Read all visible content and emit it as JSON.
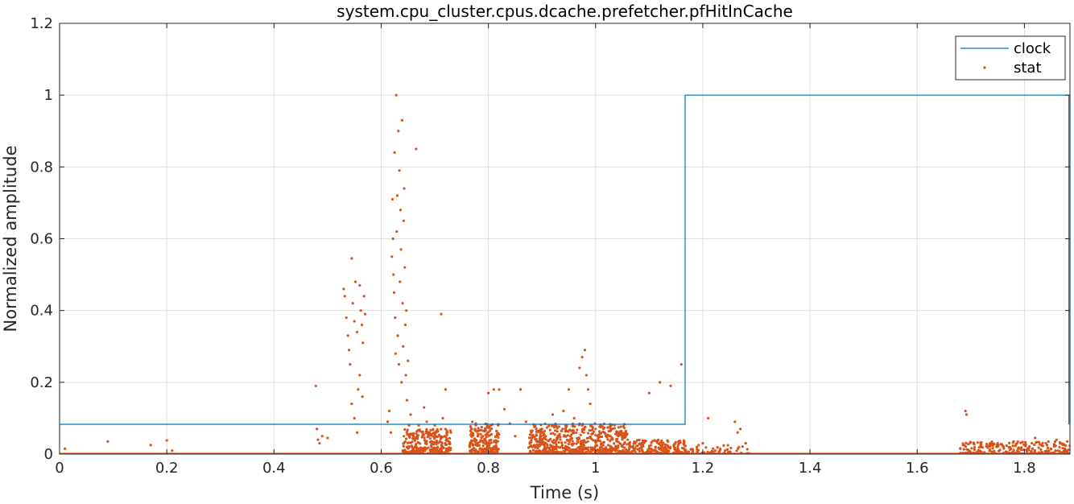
{
  "chart_data": {
    "type": "line+scatter",
    "title": "system.cpu_cluster.cpus.dcache.prefetcher.pfHitInCache",
    "xlabel": "Time (s)",
    "ylabel": "Normalized amplitude",
    "xlim": [
      0,
      1.885
    ],
    "ylim": [
      0,
      1.2
    ],
    "xticks": [
      0,
      0.2,
      0.4,
      0.6,
      0.8,
      1,
      1.2,
      1.4,
      1.6,
      1.8
    ],
    "xtick_labels": [
      "0",
      "0.2",
      "0.4",
      "0.6",
      "0.8",
      "1",
      "1.2",
      "1.4",
      "1.6",
      "1.8"
    ],
    "yticks": [
      0,
      0.2,
      0.4,
      0.6,
      0.8,
      1,
      1.2
    ],
    "ytick_labels": [
      "0",
      "0.2",
      "0.4",
      "0.6",
      "0.8",
      "1",
      "1.2"
    ],
    "grid": true,
    "legend_position": "top-right",
    "series": [
      {
        "name": "clock",
        "kind": "step-line",
        "color": "#0072BD",
        "x": [
          0,
          1.167,
          1.167,
          1.883,
          1.883
        ],
        "y": [
          0.083,
          0.083,
          1.0,
          1.0,
          0.083
        ]
      },
      {
        "name": "stat",
        "kind": "scatter",
        "color": "#D95319",
        "baseline": {
          "x_start": 0,
          "x_end": 1.885,
          "y": 0
        },
        "points": [
          [
            0.01,
            0.015
          ],
          [
            0.09,
            0.035
          ],
          [
            0.17,
            0.025
          ],
          [
            0.2,
            0.038
          ],
          [
            0.21,
            0.01
          ],
          [
            0.478,
            0.19
          ],
          [
            0.48,
            0.07
          ],
          [
            0.482,
            0.04
          ],
          [
            0.485,
            0.03
          ],
          [
            0.49,
            0.05
          ],
          [
            0.5,
            0.045
          ],
          [
            0.53,
            0.46
          ],
          [
            0.532,
            0.44
          ],
          [
            0.535,
            0.38
          ],
          [
            0.538,
            0.33
          ],
          [
            0.54,
            0.29
          ],
          [
            0.542,
            0.25
          ],
          [
            0.545,
            0.545
          ],
          [
            0.547,
            0.42
          ],
          [
            0.55,
            0.37
          ],
          [
            0.552,
            0.48
          ],
          [
            0.555,
            0.34
          ],
          [
            0.557,
            0.18
          ],
          [
            0.56,
            0.47
          ],
          [
            0.562,
            0.4
          ],
          [
            0.564,
            0.36
          ],
          [
            0.566,
            0.31
          ],
          [
            0.568,
            0.44
          ],
          [
            0.57,
            0.39
          ],
          [
            0.545,
            0.14
          ],
          [
            0.55,
            0.1
          ],
          [
            0.555,
            0.06
          ],
          [
            0.56,
            0.22
          ],
          [
            0.565,
            0.16
          ],
          [
            0.612,
            0.09
          ],
          [
            0.615,
            0.12
          ],
          [
            0.618,
            0.06
          ],
          [
            0.62,
            0.55
          ],
          [
            0.621,
            0.71
          ],
          [
            0.622,
            0.6
          ],
          [
            0.623,
            0.5
          ],
          [
            0.624,
            0.45
          ],
          [
            0.625,
            0.84
          ],
          [
            0.626,
            0.38
          ],
          [
            0.627,
            0.28
          ],
          [
            0.628,
            1.0
          ],
          [
            0.629,
            0.62
          ],
          [
            0.63,
            0.72
          ],
          [
            0.631,
            0.33
          ],
          [
            0.632,
            0.9
          ],
          [
            0.633,
            0.25
          ],
          [
            0.634,
            0.79
          ],
          [
            0.635,
            0.48
          ],
          [
            0.636,
            0.68
          ],
          [
            0.637,
            0.57
          ],
          [
            0.638,
            0.2
          ],
          [
            0.639,
            0.93
          ],
          [
            0.64,
            0.42
          ],
          [
            0.641,
            0.3
          ],
          [
            0.642,
            0.65
          ],
          [
            0.643,
            0.74
          ],
          [
            0.644,
            0.52
          ],
          [
            0.645,
            0.36
          ],
          [
            0.646,
            0.22
          ],
          [
            0.647,
            0.4
          ],
          [
            0.648,
            0.15
          ],
          [
            0.65,
            0.26
          ],
          [
            0.652,
            0.08
          ],
          [
            0.655,
            0.11
          ],
          [
            0.66,
            0.05
          ],
          [
            0.665,
            0.85
          ],
          [
            0.67,
            0.08
          ],
          [
            0.68,
            0.13
          ],
          [
            0.685,
            0.09
          ],
          [
            0.69,
            0.06
          ],
          [
            0.7,
            0.08
          ],
          [
            0.71,
            0.05
          ],
          [
            0.712,
            0.39
          ],
          [
            0.715,
            0.1
          ],
          [
            0.72,
            0.18
          ],
          [
            0.73,
            0.06
          ],
          [
            0.77,
            0.09
          ],
          [
            0.775,
            0.07
          ],
          [
            0.78,
            0.05
          ],
          [
            0.79,
            0.065
          ],
          [
            0.8,
            0.17
          ],
          [
            0.81,
            0.18
          ],
          [
            0.82,
            0.18
          ],
          [
            0.83,
            0.125
          ],
          [
            0.84,
            0.085
          ],
          [
            0.85,
            0.05
          ],
          [
            0.86,
            0.18
          ],
          [
            0.87,
            0.09
          ],
          [
            0.88,
            0.06
          ],
          [
            0.9,
            0.07
          ],
          [
            0.92,
            0.11
          ],
          [
            0.94,
            0.12
          ],
          [
            0.95,
            0.18
          ],
          [
            0.96,
            0.1
          ],
          [
            0.97,
            0.24
          ],
          [
            0.975,
            0.27
          ],
          [
            0.98,
            0.29
          ],
          [
            0.983,
            0.22
          ],
          [
            0.986,
            0.18
          ],
          [
            0.99,
            0.14
          ],
          [
            0.975,
            0.08
          ],
          [
            0.978,
            0.06
          ],
          [
            1.0,
            0.07
          ],
          [
            1.02,
            0.05
          ],
          [
            1.04,
            0.06
          ],
          [
            1.06,
            0.04
          ],
          [
            1.1,
            0.17
          ],
          [
            1.12,
            0.2
          ],
          [
            1.14,
            0.19
          ],
          [
            1.16,
            0.25
          ],
          [
            1.13,
            0.02
          ],
          [
            1.2,
            0.03
          ],
          [
            1.21,
            0.1
          ],
          [
            1.26,
            0.09
          ],
          [
            1.265,
            0.06
          ],
          [
            1.27,
            0.07
          ],
          [
            1.28,
            0.03
          ],
          [
            1.69,
            0.12
          ],
          [
            1.692,
            0.11
          ],
          [
            1.72,
            0.02
          ],
          [
            1.75,
            0.03
          ],
          [
            1.78,
            0.035
          ],
          [
            1.8,
            0.025
          ],
          [
            1.82,
            0.045
          ],
          [
            1.84,
            0.03
          ],
          [
            1.86,
            0.04
          ],
          [
            1.88,
            0.035
          ]
        ],
        "dense_regions": [
          {
            "x": [
              0.64,
              0.73
            ],
            "y": [
              0,
              0.07
            ],
            "count": 320
          },
          {
            "x": [
              0.765,
              0.82
            ],
            "y": [
              0,
              0.09
            ],
            "count": 220
          },
          {
            "x": [
              0.875,
              1.06
            ],
            "y": [
              0,
              0.085
            ],
            "count": 650
          },
          {
            "x": [
              1.06,
              1.17
            ],
            "y": [
              0,
              0.04
            ],
            "count": 220
          },
          {
            "x": [
              1.17,
              1.29
            ],
            "y": [
              0,
              0.025
            ],
            "count": 60
          },
          {
            "x": [
              1.68,
              1.885
            ],
            "y": [
              0,
              0.035
            ],
            "count": 260
          }
        ]
      }
    ]
  }
}
